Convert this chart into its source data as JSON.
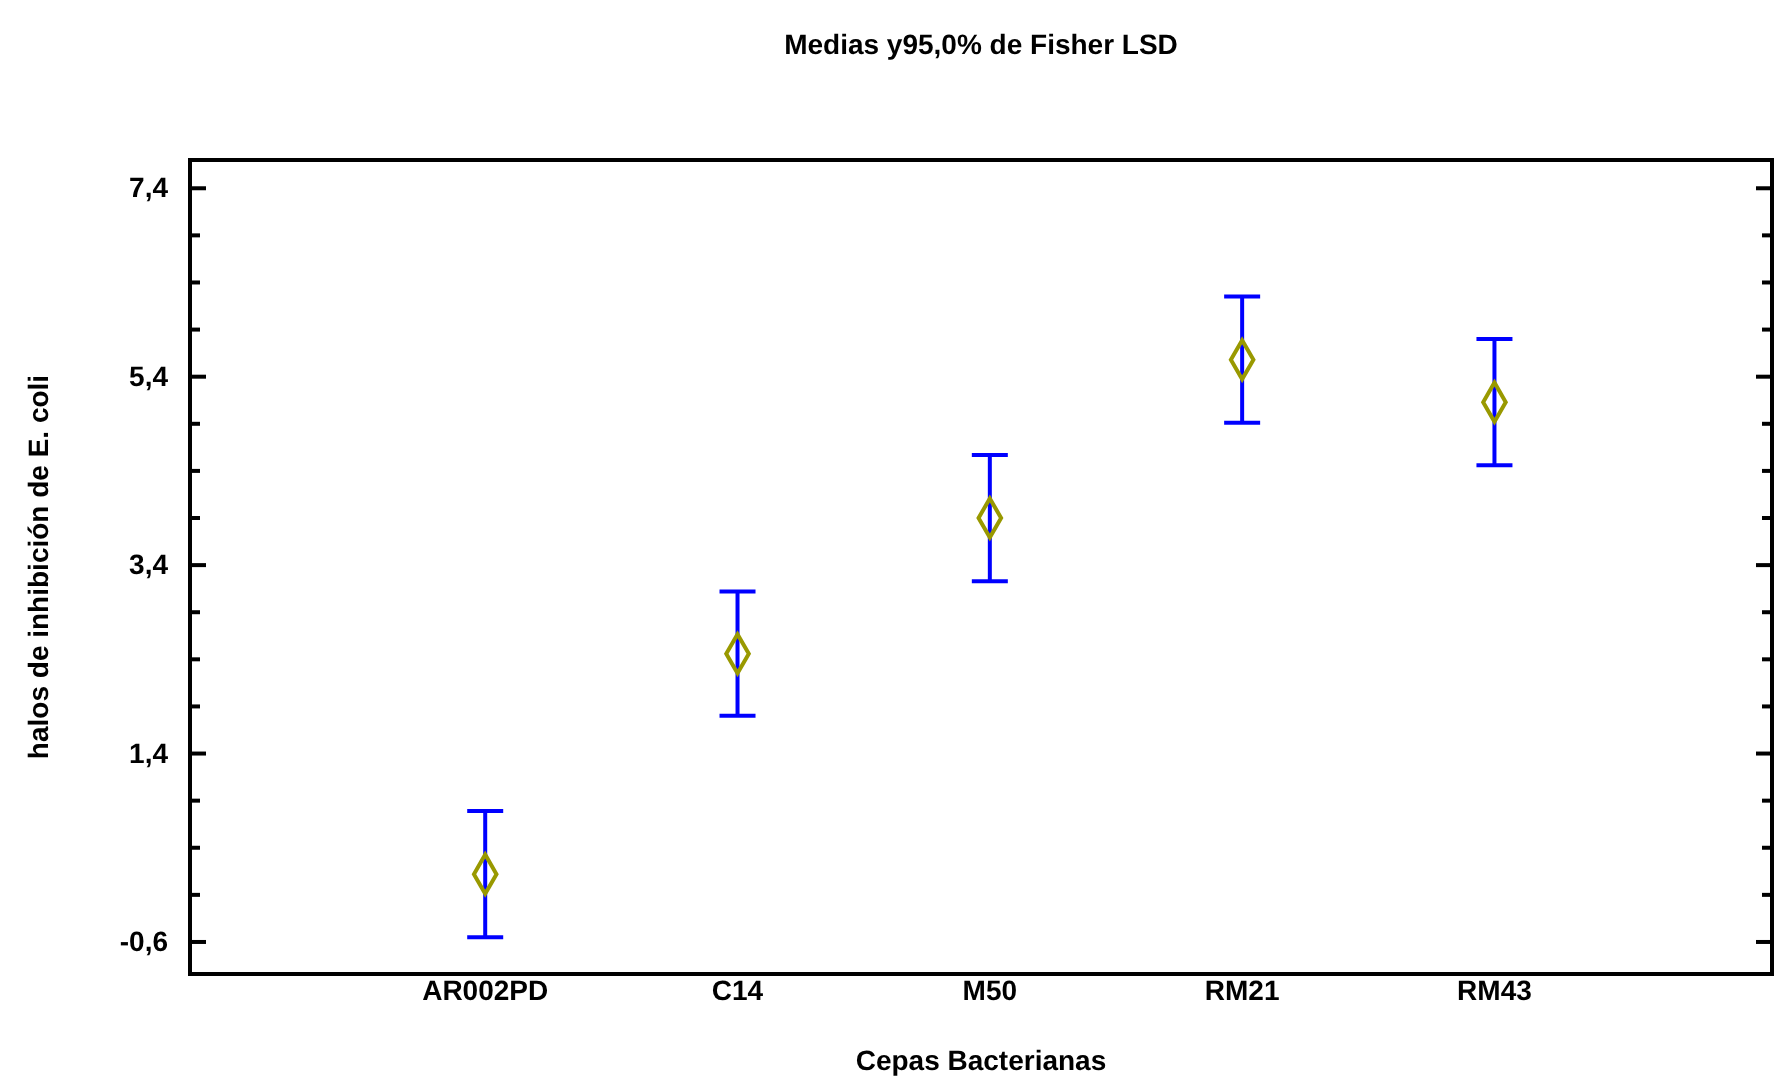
{
  "chart_data": {
    "type": "scatter",
    "title": "Medias y95,0% de Fisher LSD",
    "xlabel": "Cepas Bacterianas",
    "ylabel": "halos de inhibición de E. coli",
    "categories": [
      "AR002PD",
      "C14",
      "M50",
      "RM21",
      "RM43"
    ],
    "series": [
      {
        "color": "#999900",
        "values": [
          0.12,
          2.46,
          3.9,
          5.58,
          5.13
        ],
        "errors": [
          0.67,
          0.66,
          0.67,
          0.67,
          0.67
        ]
      }
    ],
    "marker": "diamond",
    "ylim": [
      -0.94,
      7.7
    ],
    "yticks": [
      {
        "value": -0.6,
        "label": "-0,6"
      },
      {
        "value": -0.1,
        "label": null
      },
      {
        "value": 0.4,
        "label": null
      },
      {
        "value": 0.9,
        "label": null
      },
      {
        "value": 1.4,
        "label": "1,4"
      },
      {
        "value": 1.9,
        "label": null
      },
      {
        "value": 2.4,
        "label": null
      },
      {
        "value": 2.9,
        "label": null
      },
      {
        "value": 3.4,
        "label": "3,4"
      },
      {
        "value": 3.9,
        "label": null
      },
      {
        "value": 4.4,
        "label": null
      },
      {
        "value": 4.9,
        "label": null
      },
      {
        "value": 5.4,
        "label": "5,4"
      },
      {
        "value": 5.9,
        "label": null
      },
      {
        "value": 6.4,
        "label": null
      },
      {
        "value": 6.9,
        "label": null
      },
      {
        "value": 7.4,
        "label": "7,4"
      }
    ],
    "grid": false
  }
}
